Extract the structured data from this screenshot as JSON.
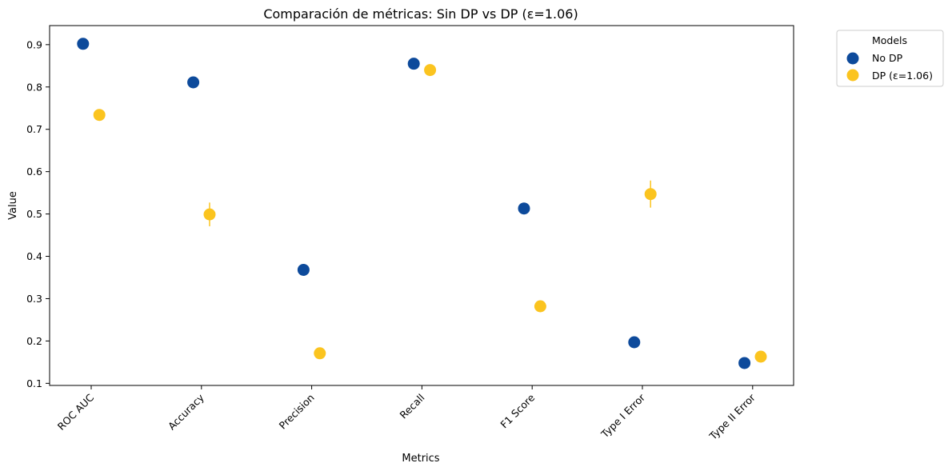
{
  "chart_data": {
    "type": "scatter",
    "title": "Comparación de métricas: Sin DP vs DP (ε=1.06)",
    "xlabel": "Metrics",
    "ylabel": "Value",
    "categories": [
      "ROC AUC",
      "Accuracy",
      "Precision",
      "Recall",
      "F1 Score",
      "Type I Error",
      "Type II Error"
    ],
    "ylim": [
      0.095,
      0.945
    ],
    "yticks": [
      "0.1",
      "0.2",
      "0.3",
      "0.4",
      "0.5",
      "0.6",
      "0.7",
      "0.8",
      "0.9"
    ],
    "series": [
      {
        "name": "No DP",
        "color": "#0d4a9b",
        "values": [
          0.902,
          0.811,
          0.368,
          0.855,
          0.513,
          0.197,
          0.148
        ],
        "errors": [
          0,
          0,
          0,
          0,
          0,
          0,
          0
        ]
      },
      {
        "name": "DP (ε=1.06)",
        "color": "#fbc41f",
        "values": [
          0.734,
          0.499,
          0.171,
          0.84,
          0.282,
          0.547,
          0.163
        ],
        "errors": [
          0,
          0.028,
          0,
          0,
          0,
          0.032,
          0
        ]
      }
    ],
    "legend": {
      "title": "Models",
      "placement": "outside-top-right"
    },
    "grid": false
  }
}
